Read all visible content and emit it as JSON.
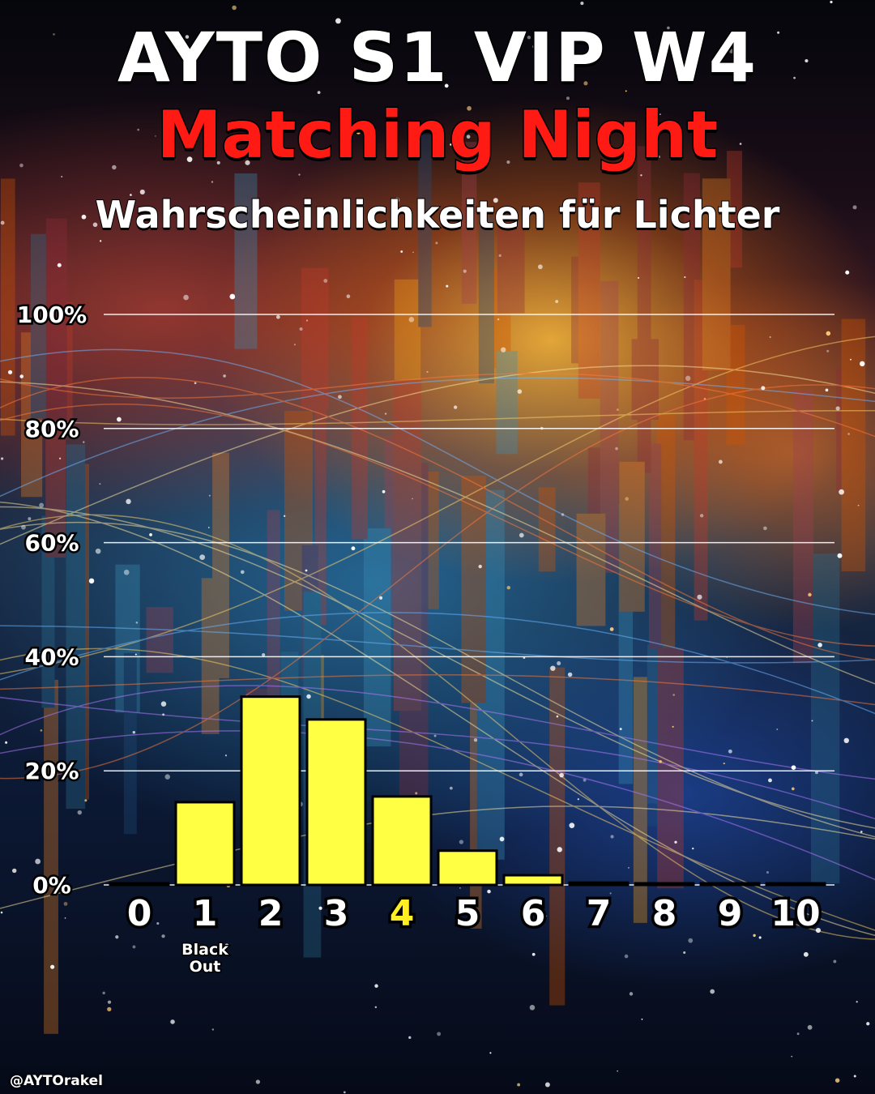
{
  "header": {
    "title": "AYTO S1 VIP W4",
    "subtitle": "Matching Night",
    "subtitle2": "Wahrscheinlichkeiten für Lichter"
  },
  "credit": "@AYTOrakel",
  "colors": {
    "bar_fill": "#ffff44",
    "bar_stroke": "#000000",
    "highlight_tick": "#ffee22",
    "subtitle": "#ff1a14",
    "grid": "#ffffff"
  },
  "chart_data": {
    "type": "bar",
    "categories": [
      "0",
      "1",
      "2",
      "3",
      "4",
      "5",
      "6",
      "7",
      "8",
      "9",
      "10"
    ],
    "values": [
      0,
      14.5,
      33,
      29,
      15.5,
      6,
      1.7,
      0.4,
      0.1,
      0,
      0
    ],
    "highlight_category": "4",
    "annotations": [
      {
        "category": "1",
        "text": [
          "Black",
          "Out"
        ]
      }
    ],
    "yticks": [
      "0%",
      "20%",
      "40%",
      "60%",
      "80%",
      "100%"
    ],
    "ylim": [
      0,
      100
    ],
    "grid": true,
    "xlabel": "",
    "ylabel": ""
  }
}
